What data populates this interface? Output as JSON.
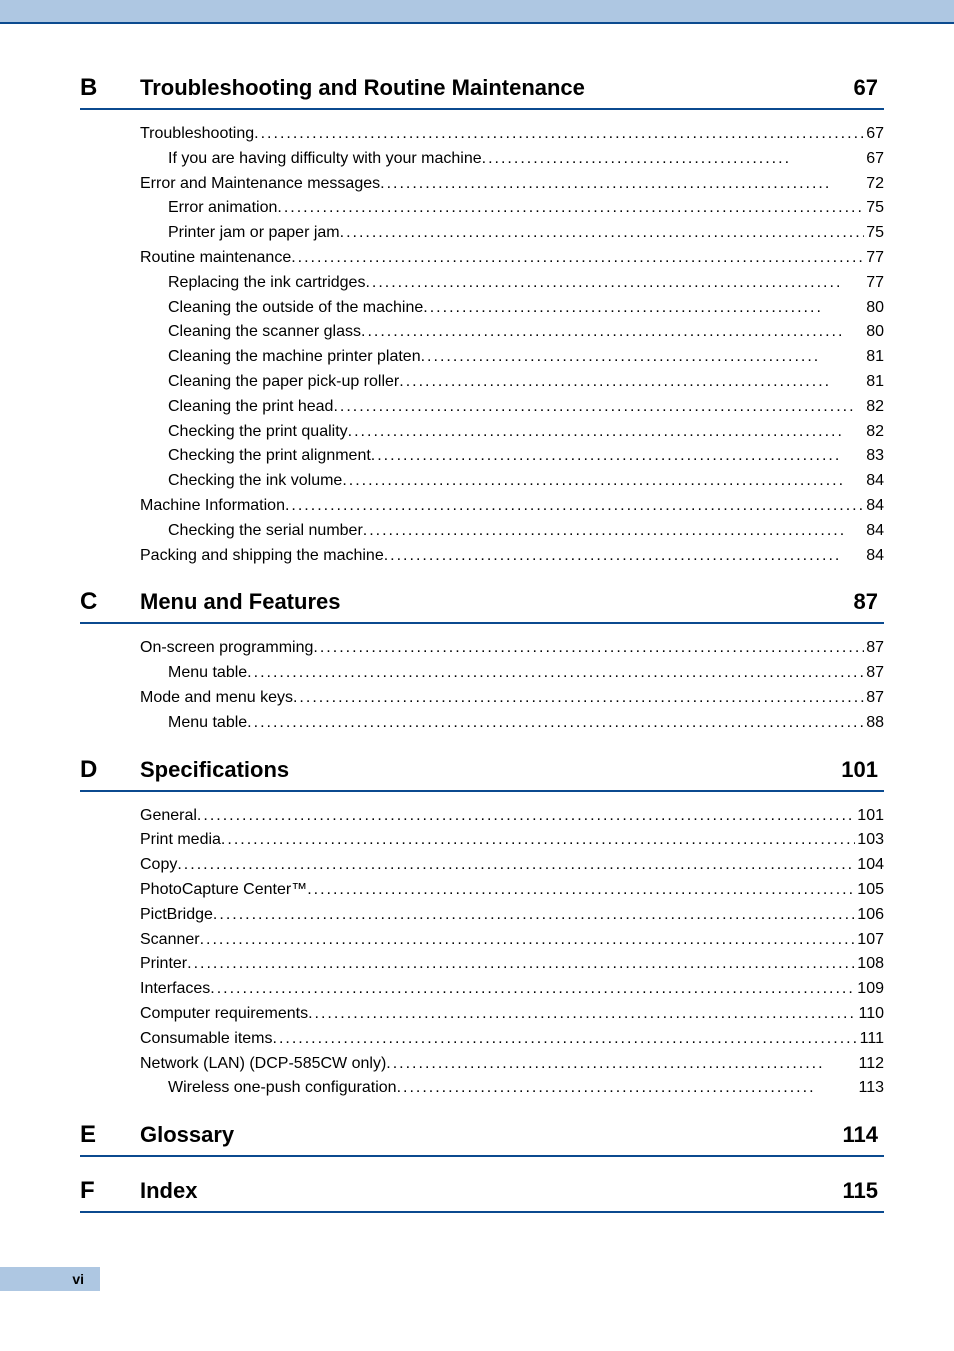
{
  "pageNumberLabel": "vi",
  "colors": {
    "band": "#aec7e2",
    "rule": "#0b4a8f",
    "text": "#000000",
    "bg": "#ffffff"
  },
  "sections": [
    {
      "letter": "B",
      "title": "Troubleshooting and Routine Maintenance",
      "page": "67",
      "entries": [
        {
          "level": 0,
          "label": "Troubleshooting ",
          "page": "67"
        },
        {
          "level": 1,
          "label": "If you are having difficulty with your machine ",
          "page": "67"
        },
        {
          "level": 0,
          "label": "Error and Maintenance messages",
          "page": "72"
        },
        {
          "level": 1,
          "label": "Error animation ",
          "page": "75"
        },
        {
          "level": 1,
          "label": "Printer jam or paper jam ",
          "page": "75"
        },
        {
          "level": 0,
          "label": "Routine maintenance",
          "page": "77"
        },
        {
          "level": 1,
          "label": "Replacing the ink cartridges ",
          "page": "77"
        },
        {
          "level": 1,
          "label": "Cleaning the outside of the machine ",
          "page": "80"
        },
        {
          "level": 1,
          "label": "Cleaning the scanner glass ",
          "page": "80"
        },
        {
          "level": 1,
          "label": "Cleaning the machine printer platen",
          "page": "81"
        },
        {
          "level": 1,
          "label": "Cleaning the paper pick-up roller",
          "page": "81"
        },
        {
          "level": 1,
          "label": "Cleaning the print head ",
          "page": "82"
        },
        {
          "level": 1,
          "label": "Checking the print quality ",
          "page": "82"
        },
        {
          "level": 1,
          "label": "Checking the print alignment ",
          "page": "83"
        },
        {
          "level": 1,
          "label": "Checking the ink volume ",
          "page": "84"
        },
        {
          "level": 0,
          "label": "Machine Information ",
          "page": "84"
        },
        {
          "level": 1,
          "label": "Checking the serial number",
          "page": "84"
        },
        {
          "level": 0,
          "label": "Packing and shipping the machine",
          "page": "84"
        }
      ]
    },
    {
      "letter": "C",
      "title": "Menu and Features",
      "page": "87",
      "entries": [
        {
          "level": 0,
          "label": "On-screen programming",
          "page": "87"
        },
        {
          "level": 1,
          "label": "Menu table",
          "page": "87"
        },
        {
          "level": 0,
          "label": "Mode and menu keys ",
          "page": "87"
        },
        {
          "level": 1,
          "label": "Menu table",
          "page": "88"
        }
      ]
    },
    {
      "letter": "D",
      "title": "Specifications",
      "page": "101",
      "entries": [
        {
          "level": 0,
          "label": "General",
          "page": "101"
        },
        {
          "level": 0,
          "label": "Print media",
          "page": "103"
        },
        {
          "level": 0,
          "label": "Copy ",
          "page": "104"
        },
        {
          "level": 0,
          "label": "PhotoCapture Center™ ",
          "page": "105"
        },
        {
          "level": 0,
          "label": "PictBridge ",
          "page": "106"
        },
        {
          "level": 0,
          "label": "Scanner ",
          "page": "107"
        },
        {
          "level": 0,
          "label": "Printer ",
          "page": "108"
        },
        {
          "level": 0,
          "label": "Interfaces",
          "page": "109"
        },
        {
          "level": 0,
          "label": "Computer requirements ",
          "page": "110"
        },
        {
          "level": 0,
          "label": "Consumable items",
          "page": "111"
        },
        {
          "level": 0,
          "label": "Network (LAN) (DCP-585CW only) ",
          "page": "112"
        },
        {
          "level": 1,
          "label": "Wireless one-push configuration ",
          "page": "113"
        }
      ]
    },
    {
      "letter": "E",
      "title": "Glossary",
      "page": "114",
      "entries": []
    },
    {
      "letter": "F",
      "title": "Index",
      "page": "115",
      "entries": []
    }
  ]
}
